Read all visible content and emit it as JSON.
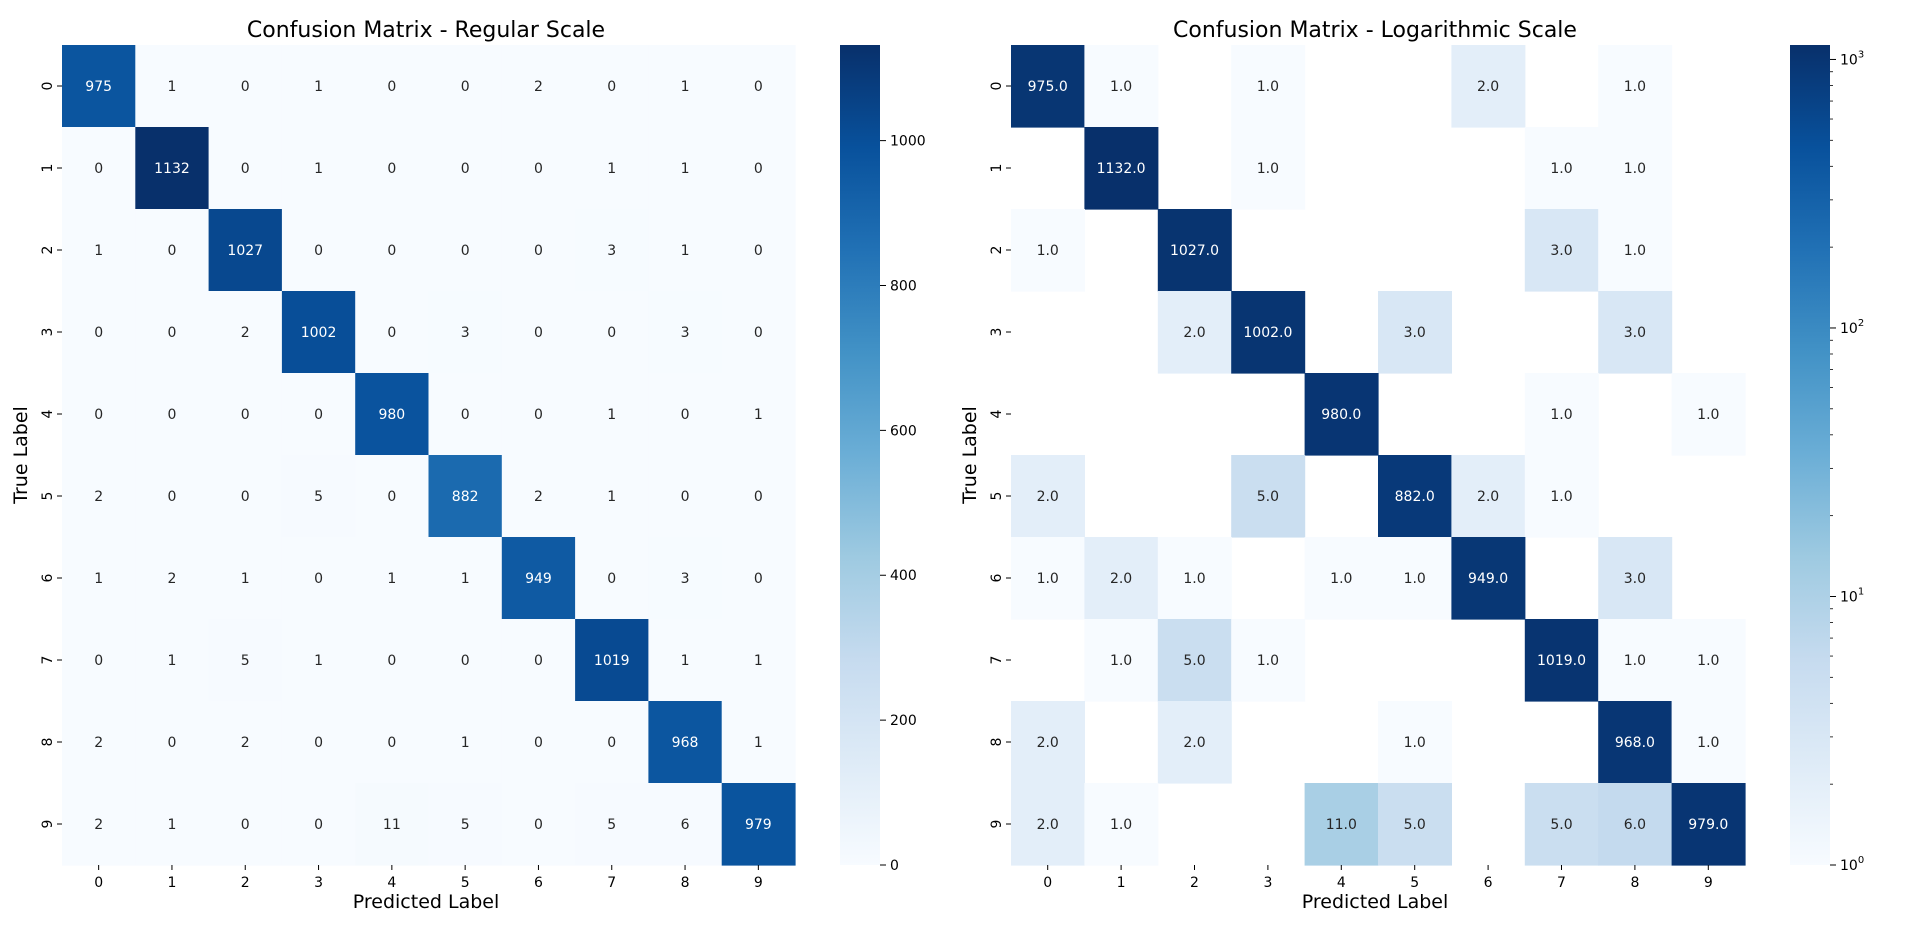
{
  "chart_data": [
    {
      "type": "heatmap",
      "title": "Confusion Matrix - Regular Scale",
      "xlabel": "Predicted Label",
      "ylabel": "True Label",
      "x_ticks": [
        "0",
        "1",
        "2",
        "3",
        "4",
        "5",
        "6",
        "7",
        "8",
        "9"
      ],
      "y_ticks": [
        "0",
        "1",
        "2",
        "3",
        "4",
        "5",
        "6",
        "7",
        "8",
        "9"
      ],
      "matrix": [
        [
          975,
          1,
          0,
          1,
          0,
          0,
          2,
          0,
          1,
          0
        ],
        [
          0,
          1132,
          0,
          1,
          0,
          0,
          0,
          1,
          1,
          0
        ],
        [
          1,
          0,
          1027,
          0,
          0,
          0,
          0,
          3,
          1,
          0
        ],
        [
          0,
          0,
          2,
          1002,
          0,
          3,
          0,
          0,
          3,
          0
        ],
        [
          0,
          0,
          0,
          0,
          980,
          0,
          0,
          1,
          0,
          1
        ],
        [
          2,
          0,
          0,
          5,
          0,
          882,
          2,
          1,
          0,
          0
        ],
        [
          1,
          2,
          1,
          0,
          1,
          1,
          949,
          0,
          3,
          0
        ],
        [
          0,
          1,
          5,
          1,
          0,
          0,
          0,
          1019,
          1,
          1
        ],
        [
          2,
          0,
          2,
          0,
          0,
          1,
          0,
          0,
          968,
          1
        ],
        [
          2,
          1,
          0,
          0,
          11,
          5,
          0,
          5,
          6,
          979
        ]
      ],
      "annotation_format": "integer",
      "color_scale": "linear",
      "colormap": "Blues",
      "colorbar_range": [
        0,
        1132
      ],
      "colorbar_ticks": [
        "0",
        "200",
        "400",
        "600",
        "800",
        "1000"
      ],
      "grid": false
    },
    {
      "type": "heatmap",
      "title": "Confusion Matrix - Logarithmic Scale",
      "xlabel": "Predicted Label",
      "ylabel": "True Label",
      "x_ticks": [
        "0",
        "1",
        "2",
        "3",
        "4",
        "5",
        "6",
        "7",
        "8",
        "9"
      ],
      "y_ticks": [
        "0",
        "1",
        "2",
        "3",
        "4",
        "5",
        "6",
        "7",
        "8",
        "9"
      ],
      "matrix": [
        [
          975,
          1,
          0,
          1,
          0,
          0,
          2,
          0,
          1,
          0
        ],
        [
          0,
          1132,
          0,
          1,
          0,
          0,
          0,
          1,
          1,
          0
        ],
        [
          1,
          0,
          1027,
          0,
          0,
          0,
          0,
          3,
          1,
          0
        ],
        [
          0,
          0,
          2,
          1002,
          0,
          3,
          0,
          0,
          3,
          0
        ],
        [
          0,
          0,
          0,
          0,
          980,
          0,
          0,
          1,
          0,
          1
        ],
        [
          2,
          0,
          0,
          5,
          0,
          882,
          2,
          1,
          0,
          0
        ],
        [
          1,
          2,
          1,
          0,
          1,
          1,
          949,
          0,
          3,
          0
        ],
        [
          0,
          1,
          5,
          1,
          0,
          0,
          0,
          1019,
          1,
          1
        ],
        [
          2,
          0,
          2,
          0,
          0,
          1,
          0,
          0,
          968,
          1
        ],
        [
          2,
          1,
          0,
          0,
          11,
          5,
          0,
          5,
          6,
          979
        ]
      ],
      "annotation_format": "one-decimal",
      "zero_cells": "masked",
      "color_scale": "log",
      "colormap": "Blues",
      "colorbar_range": [
        1,
        1132
      ],
      "colorbar_ticks": [
        {
          "base": "10",
          "exp": "0",
          "value": 1
        },
        {
          "base": "10",
          "exp": "1",
          "value": 10
        },
        {
          "base": "10",
          "exp": "2",
          "value": 100
        },
        {
          "base": "10",
          "exp": "3",
          "value": 1000
        }
      ],
      "grid": false
    }
  ]
}
